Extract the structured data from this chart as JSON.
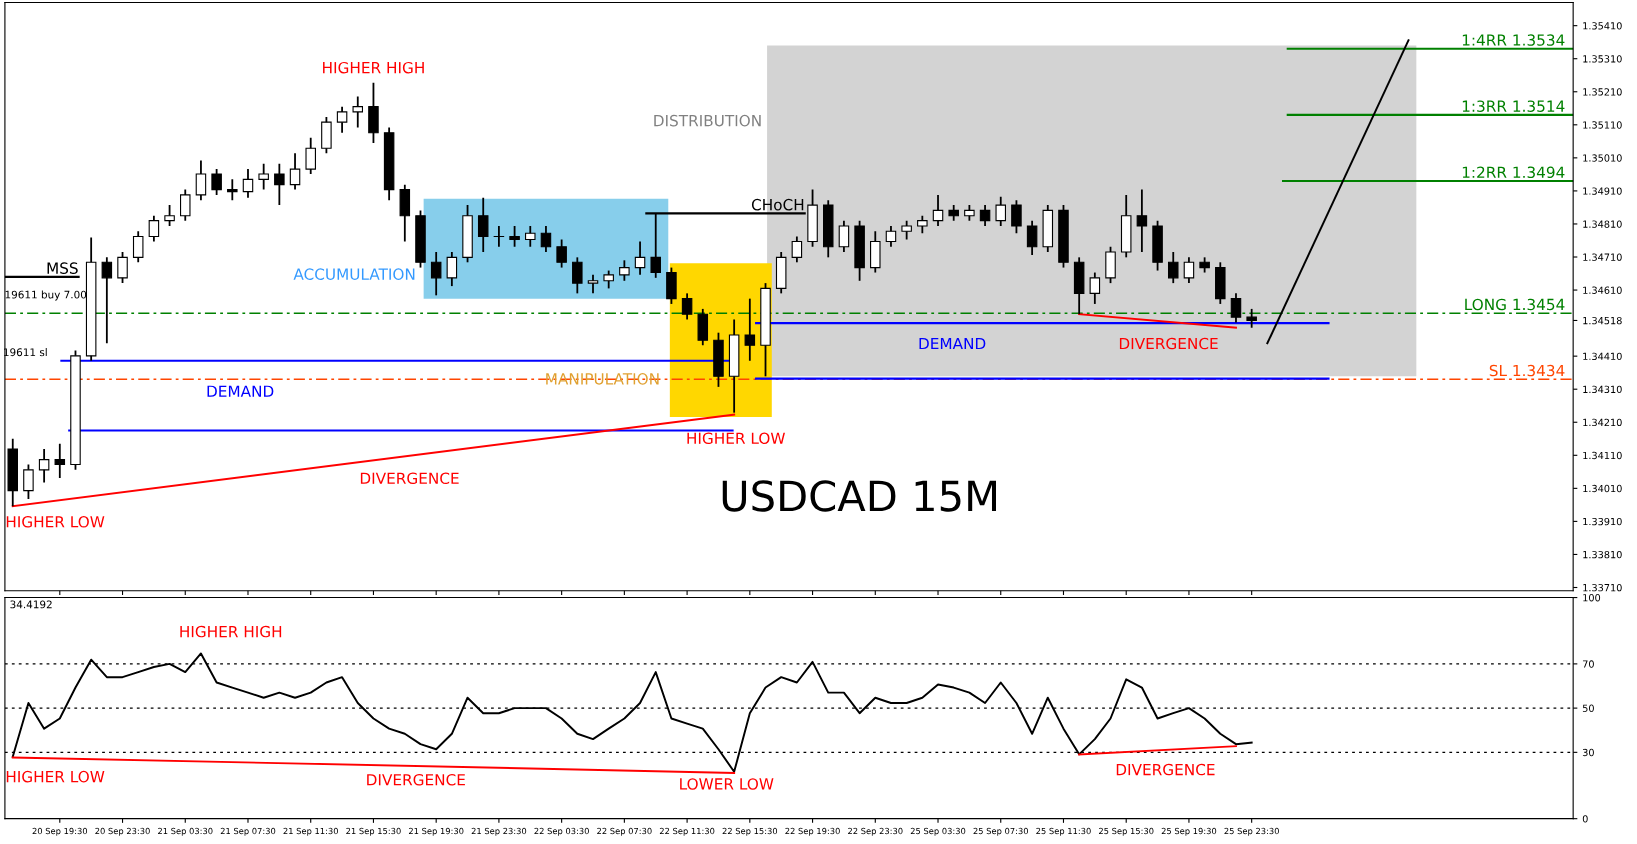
{
  "chart_data": [
    {
      "type": "candlestick",
      "title": "USDCAD 15M",
      "color": "#000000",
      "ohlc": [
        [
          1.34129,
          1.3416,
          1.33956,
          1.34003
        ],
        [
          1.34003,
          1.34082,
          1.33978,
          1.34066
        ],
        [
          1.34066,
          1.34129,
          1.34028,
          1.34097
        ],
        [
          1.34097,
          1.34145,
          1.34041,
          1.34082
        ],
        [
          1.34082,
          1.34427,
          1.34066,
          1.34411
        ],
        [
          1.34411,
          1.34769,
          1.34396,
          1.34694
        ],
        [
          1.34694,
          1.34709,
          1.34449,
          1.34647
        ],
        [
          1.34647,
          1.34725,
          1.34631,
          1.34709
        ],
        [
          1.34709,
          1.34788,
          1.34694,
          1.34772
        ],
        [
          1.34772,
          1.34835,
          1.34757,
          1.3482
        ],
        [
          1.3482,
          1.34867,
          1.34804,
          1.34835
        ],
        [
          1.34835,
          1.34914,
          1.3482,
          1.34898
        ],
        [
          1.34898,
          1.35002,
          1.34882,
          1.34961
        ],
        [
          1.34961,
          1.34976,
          1.34898,
          1.34914
        ],
        [
          1.34914,
          1.34945,
          1.34882,
          1.34908
        ],
        [
          1.34908,
          1.34976,
          1.34889,
          1.34945
        ],
        [
          1.34945,
          1.34992,
          1.34914,
          1.34961
        ],
        [
          1.34961,
          1.34992,
          1.34867,
          1.34929
        ],
        [
          1.34929,
          1.35024,
          1.34914,
          1.34976
        ],
        [
          1.34976,
          1.35071,
          1.34961,
          1.35039
        ],
        [
          1.35039,
          1.35134,
          1.35024,
          1.35118
        ],
        [
          1.35118,
          1.35165,
          1.35086,
          1.35149
        ],
        [
          1.35149,
          1.35196,
          1.35102,
          1.35165
        ],
        [
          1.35165,
          1.35237,
          1.35055,
          1.35086
        ],
        [
          1.35086,
          1.35102,
          1.34882,
          1.34914
        ],
        [
          1.34914,
          1.34929,
          1.34757,
          1.34835
        ],
        [
          1.34835,
          1.34851,
          1.34678,
          1.34694
        ],
        [
          1.34694,
          1.34725,
          1.34594,
          1.34647
        ],
        [
          1.34647,
          1.34725,
          1.34622,
          1.34709
        ],
        [
          1.34709,
          1.34867,
          1.34694,
          1.34835
        ],
        [
          1.34835,
          1.34889,
          1.34725,
          1.34772
        ],
        [
          1.34772,
          1.34804,
          1.34741,
          1.34772
        ],
        [
          1.34772,
          1.34804,
          1.34741,
          1.34763
        ],
        [
          1.34763,
          1.34804,
          1.34741,
          1.34782
        ],
        [
          1.34782,
          1.34804,
          1.34725,
          1.34741
        ],
        [
          1.34741,
          1.34763,
          1.34678,
          1.34694
        ],
        [
          1.34694,
          1.34709,
          1.346,
          1.34631
        ],
        [
          1.34631,
          1.34656,
          1.346,
          1.34638
        ],
        [
          1.34638,
          1.34669,
          1.34615,
          1.34656
        ],
        [
          1.34656,
          1.347,
          1.34638,
          1.34678
        ],
        [
          1.34678,
          1.34757,
          1.34656,
          1.34709
        ],
        [
          1.34709,
          1.34842,
          1.34647,
          1.34663
        ],
        [
          1.34663,
          1.34678,
          1.34568,
          1.34584
        ],
        [
          1.34584,
          1.346,
          1.34521,
          1.34537
        ],
        [
          1.34537,
          1.34553,
          1.34443,
          1.34458
        ],
        [
          1.34458,
          1.34481,
          1.34317,
          1.34349
        ],
        [
          1.34349,
          1.34521,
          1.34239,
          1.34474
        ],
        [
          1.34474,
          1.34584,
          1.34396,
          1.34443
        ],
        [
          1.34443,
          1.34631,
          1.34349,
          1.34615
        ],
        [
          1.34615,
          1.34725,
          1.346,
          1.34709
        ],
        [
          1.34709,
          1.34772,
          1.34694,
          1.34757
        ],
        [
          1.34757,
          1.34914,
          1.34741,
          1.34867
        ],
        [
          1.34867,
          1.34882,
          1.34709,
          1.34741
        ],
        [
          1.34741,
          1.3482,
          1.34725,
          1.34804
        ],
        [
          1.34804,
          1.3482,
          1.34638,
          1.34678
        ],
        [
          1.34678,
          1.34788,
          1.34663,
          1.34757
        ],
        [
          1.34757,
          1.34804,
          1.34741,
          1.34788
        ],
        [
          1.34788,
          1.3482,
          1.34763,
          1.34804
        ],
        [
          1.34804,
          1.34835,
          1.34782,
          1.3482
        ],
        [
          1.3482,
          1.34898,
          1.34804,
          1.34851
        ],
        [
          1.34851,
          1.34867,
          1.3482,
          1.34835
        ],
        [
          1.34835,
          1.34867,
          1.3482,
          1.34851
        ],
        [
          1.34851,
          1.34867,
          1.34804,
          1.3482
        ],
        [
          1.3482,
          1.34892,
          1.34804,
          1.34867
        ],
        [
          1.34867,
          1.34882,
          1.34782,
          1.34804
        ],
        [
          1.34804,
          1.3482,
          1.34716,
          1.34741
        ],
        [
          1.34741,
          1.34867,
          1.34725,
          1.34851
        ],
        [
          1.34851,
          1.34867,
          1.34678,
          1.34694
        ],
        [
          1.34694,
          1.34709,
          1.34537,
          1.346
        ],
        [
          1.346,
          1.34663,
          1.34568,
          1.34647
        ],
        [
          1.34647,
          1.34741,
          1.34631,
          1.34725
        ],
        [
          1.34725,
          1.34898,
          1.34709,
          1.34835
        ],
        [
          1.34835,
          1.34914,
          1.34725,
          1.34804
        ],
        [
          1.34804,
          1.3482,
          1.34669,
          1.34694
        ],
        [
          1.34694,
          1.34725,
          1.34631,
          1.34647
        ],
        [
          1.34647,
          1.34709,
          1.34631,
          1.34694
        ],
        [
          1.34694,
          1.34709,
          1.34663,
          1.34678
        ],
        [
          1.34678,
          1.34694,
          1.34568,
          1.34584
        ],
        [
          1.34584,
          1.346,
          1.34512,
          1.34528
        ],
        [
          1.34528,
          1.34553,
          1.34496,
          1.34518
        ],
        null,
        null,
        null,
        null,
        null,
        null,
        null,
        null,
        null,
        null,
        null,
        null,
        null,
        null,
        null,
        null,
        null,
        null,
        null,
        null
      ],
      "series": [
        {
          "type": "line",
          "color": "#ff0000",
          "values": [
            1.33956,
            null,
            null,
            null,
            null,
            null,
            null,
            null,
            null,
            null,
            null,
            null,
            null,
            null,
            null,
            null,
            null,
            null,
            null,
            null,
            null,
            null,
            null,
            null,
            null,
            null,
            null,
            null,
            null,
            null,
            null,
            null,
            null,
            null,
            null,
            null,
            null,
            null,
            null,
            null,
            null,
            null,
            null,
            null,
            null,
            null,
            1.34233,
            null,
            null,
            null,
            null,
            null,
            null,
            null,
            null,
            null,
            null,
            null,
            null,
            null,
            null,
            null,
            null,
            null,
            null,
            null,
            null,
            null,
            null,
            null,
            null,
            null,
            null,
            null,
            null,
            null,
            null,
            null,
            null,
            null,
            null,
            null,
            null,
            null,
            null,
            null,
            null,
            null,
            null,
            null,
            null,
            null,
            null,
            null,
            null,
            null,
            null,
            null,
            null,
            null
          ]
        },
        {
          "type": "line",
          "color": "#ff0000",
          "values": [
            null,
            null,
            null,
            null,
            null,
            null,
            null,
            null,
            null,
            null,
            null,
            null,
            null,
            null,
            null,
            null,
            null,
            null,
            null,
            null,
            null,
            null,
            null,
            null,
            null,
            null,
            null,
            null,
            null,
            null,
            null,
            null,
            null,
            null,
            null,
            null,
            null,
            null,
            null,
            null,
            null,
            null,
            null,
            null,
            null,
            null,
            null,
            null,
            null,
            null,
            null,
            null,
            null,
            null,
            null,
            null,
            null,
            null,
            null,
            null,
            null,
            null,
            null,
            null,
            null,
            null,
            null,
            null,
            1.34537,
            null,
            null,
            null,
            null,
            null,
            null,
            null,
            null,
            null,
            1.34496,
            null,
            null,
            null,
            null,
            null,
            null,
            null,
            null,
            null,
            null,
            null,
            null,
            null,
            null,
            null,
            null,
            null,
            null,
            null,
            null,
            null
          ]
        },
        {
          "type": "line",
          "color": "#000000",
          "values": [
            null,
            null,
            null,
            null,
            null,
            null,
            null,
            null,
            null,
            null,
            null,
            null,
            null,
            null,
            null,
            null,
            null,
            null,
            null,
            null,
            null,
            null,
            null,
            null,
            null,
            null,
            null,
            null,
            null,
            null,
            null,
            null,
            null,
            null,
            null,
            null,
            null,
            null,
            null,
            null,
            null,
            null,
            null,
            null,
            null,
            null,
            null,
            null,
            null,
            null,
            null,
            null,
            null,
            null,
            null,
            null,
            null,
            null,
            null,
            null,
            null,
            null,
            null,
            null,
            null,
            null,
            null,
            null,
            null,
            null,
            null,
            null,
            null,
            null,
            null,
            null,
            null,
            null,
            null,
            null,
            1.34449,
            null,
            null,
            null,
            null,
            null,
            null,
            null,
            null,
            1.35366,
            null,
            null,
            null,
            null,
            null,
            null,
            null,
            null,
            null,
            null
          ]
        }
      ],
      "bands": [
        {
          "axis": "y",
          "from": 1.34349,
          "to": 1.3535,
          "label": "DISTRIBUTION",
          "color": "#d3d3d3"
        },
        {
          "axis": "y",
          "from": 1.34584,
          "to": 1.34886,
          "label": "ACCUMULATION",
          "color": "#87ceeb"
        },
        {
          "axis": "y",
          "from": 1.34226,
          "to": 1.34691,
          "label": "MANIPULATION",
          "color": "#ffd700"
        }
      ],
      "ref_lines": [
        {
          "axis": "y",
          "value": 1.3454,
          "label": "LONG 1.3454",
          "color": "#008000",
          "line_style": "dashed"
        },
        {
          "axis": "y",
          "value": 1.3434,
          "label": "SL 1.3434",
          "color": "#ff4500",
          "line_style": "dashed"
        },
        {
          "axis": "y",
          "value": 1.3534,
          "label": "1:4RR 1.3534",
          "color": "#008000"
        },
        {
          "axis": "y",
          "value": 1.3514,
          "label": "1:3RR 1.3514",
          "color": "#008000"
        },
        {
          "axis": "y",
          "value": 1.3494,
          "label": "1:2RR 1.3494",
          "color": "#008000"
        },
        {
          "axis": "y",
          "value": 1.3465,
          "label": "MSS",
          "color": "#000000"
        },
        {
          "axis": "y",
          "value": 1.34842,
          "label": "CHoCH",
          "color": "#000000"
        },
        {
          "axis": "y",
          "value": 1.34396,
          "color": "#0000ff"
        },
        {
          "axis": "y",
          "value": 1.34185,
          "color": "#0000ff"
        },
        {
          "axis": "y",
          "value": 1.3451,
          "color": "#0000ff"
        },
        {
          "axis": "y",
          "value": 1.34342,
          "color": "#0000ff"
        }
      ],
      "annotations": [
        "HIGHER HIGH",
        "HIGHER LOW",
        "DIVERGENCE",
        "HIGHER LOW",
        "DEMAND",
        "DEMAND",
        "DIVERGENCE",
        "19611 buy 7.00",
        "19611 sl"
      ],
      "ylim": [
        1.337,
        1.3548
      ],
      "yticks": [
        {
          "value": 1.3371,
          "label": "1.33710"
        },
        {
          "value": 1.3381,
          "label": "1.33810"
        },
        {
          "value": 1.3391,
          "label": "1.33910"
        },
        {
          "value": 1.3401,
          "label": "1.34010"
        },
        {
          "value": 1.3411,
          "label": "1.34110"
        },
        {
          "value": 1.3421,
          "label": "1.34210"
        },
        {
          "value": 1.3431,
          "label": "1.34310"
        },
        {
          "value": 1.3441,
          "label": "1.34410"
        },
        {
          "value": 1.34518,
          "label": "1.34518"
        },
        {
          "value": 1.3461,
          "label": "1.34610"
        },
        {
          "value": 1.3471,
          "label": "1.34710"
        },
        {
          "value": 1.3481,
          "label": "1.34810"
        },
        {
          "value": 1.3491,
          "label": "1.34910"
        },
        {
          "value": 1.3501,
          "label": "1.35010"
        },
        {
          "value": 1.3511,
          "label": "1.35110"
        },
        {
          "value": 1.3521,
          "label": "1.35210"
        },
        {
          "value": 1.3531,
          "label": "1.35310"
        },
        {
          "value": 1.3541,
          "label": "1.35410"
        }
      ],
      "tick_labels": "y"
    },
    {
      "type": "line",
      "categories": [
        null,
        null,
        null,
        "20 Sep 19:30",
        null,
        null,
        null,
        "20 Sep 23:30",
        null,
        null,
        null,
        "21 Sep 03:30",
        null,
        null,
        null,
        "21 Sep 07:30",
        null,
        null,
        null,
        "21 Sep 11:30",
        null,
        null,
        null,
        "21 Sep 15:30",
        null,
        null,
        null,
        "21 Sep 19:30",
        null,
        null,
        null,
        "21 Sep 23:30",
        null,
        null,
        null,
        "22 Sep 03:30",
        null,
        null,
        null,
        "22 Sep 07:30",
        null,
        null,
        null,
        "22 Sep 11:30",
        null,
        null,
        null,
        "22 Sep 15:30",
        null,
        null,
        null,
        "22 Sep 19:30",
        null,
        null,
        null,
        "22 Sep 23:30",
        null,
        null,
        null,
        "25 Sep 03:30",
        null,
        null,
        null,
        "25 Sep 07:30",
        null,
        null,
        null,
        "25 Sep 11:30",
        null,
        null,
        null,
        "25 Sep 15:30",
        null,
        null,
        null,
        "25 Sep 19:30",
        null,
        null,
        null,
        "25 Sep 23:30",
        null,
        null,
        null,
        null,
        null,
        null,
        null,
        null,
        null,
        null,
        null,
        null,
        null,
        null,
        null,
        null,
        null,
        null,
        null,
        null
      ],
      "series": [
        {
          "color": "#000000",
          "values": [
            28,
            52.3,
            40.7,
            45.3,
            59.3,
            71.9,
            64,
            64,
            66.3,
            68.6,
            70,
            66.3,
            74.7,
            61.6,
            59.3,
            57,
            54.7,
            57,
            54.7,
            57,
            61.6,
            64,
            52.3,
            45.3,
            40.7,
            38.4,
            33.7,
            31.4,
            38.4,
            54.7,
            47.7,
            47.7,
            50,
            50,
            50,
            45.3,
            38.4,
            36,
            40.7,
            45.3,
            52.3,
            66.3,
            45.3,
            43,
            40.7,
            31.4,
            21.2,
            47.7,
            59.3,
            64,
            61.6,
            70.9,
            57,
            57,
            47.7,
            54.7,
            52.3,
            52.3,
            54.7,
            60.7,
            59.3,
            57,
            52.3,
            61.6,
            52.3,
            38.4,
            54.7,
            40.7,
            29.1,
            36,
            45.3,
            63,
            59.3,
            45.3,
            47.7,
            50,
            45.3,
            38.4,
            33.7,
            34.4,
            null,
            null,
            null,
            null,
            null,
            null,
            null,
            null,
            null,
            null,
            null,
            null,
            null,
            null,
            null,
            null,
            null,
            null,
            null,
            null
          ]
        },
        {
          "color": "#ff0000",
          "values": [
            27.7,
            null,
            null,
            null,
            null,
            null,
            null,
            null,
            null,
            null,
            null,
            null,
            null,
            null,
            null,
            null,
            null,
            null,
            null,
            null,
            null,
            null,
            null,
            null,
            null,
            null,
            null,
            null,
            null,
            null,
            null,
            null,
            null,
            null,
            null,
            null,
            null,
            null,
            null,
            null,
            null,
            null,
            null,
            null,
            null,
            null,
            20.7,
            null,
            null,
            null,
            null,
            null,
            null,
            null,
            null,
            null,
            null,
            null,
            null,
            null,
            null,
            null,
            null,
            null,
            null,
            null,
            null,
            null,
            null,
            null,
            null,
            null,
            null,
            null,
            null,
            null,
            null,
            null,
            null,
            null,
            null,
            null,
            null,
            null,
            null,
            null,
            null,
            null,
            null,
            null,
            null,
            null,
            null,
            null,
            null,
            null,
            null,
            null,
            null,
            null
          ]
        },
        {
          "color": "#ff0000",
          "values": [
            null,
            null,
            null,
            null,
            null,
            null,
            null,
            null,
            null,
            null,
            null,
            null,
            null,
            null,
            null,
            null,
            null,
            null,
            null,
            null,
            null,
            null,
            null,
            null,
            null,
            null,
            null,
            null,
            null,
            null,
            null,
            null,
            null,
            null,
            null,
            null,
            null,
            null,
            null,
            null,
            null,
            null,
            null,
            null,
            null,
            null,
            null,
            null,
            null,
            null,
            null,
            null,
            null,
            null,
            null,
            null,
            null,
            null,
            null,
            null,
            null,
            null,
            null,
            null,
            null,
            null,
            null,
            null,
            29,
            null,
            null,
            null,
            null,
            null,
            null,
            null,
            null,
            null,
            32.8,
            null,
            null,
            null,
            null,
            null,
            null,
            null,
            null,
            null,
            null,
            null,
            null,
            null,
            null,
            null,
            null,
            null,
            null,
            null,
            null,
            null
          ]
        }
      ],
      "ref_lines": [
        {
          "axis": "y",
          "value": 30,
          "color": "#000000",
          "line_style": "dotted"
        },
        {
          "axis": "y",
          "value": 50,
          "color": "#000000",
          "line_style": "dotted"
        },
        {
          "axis": "y",
          "value": 70,
          "color": "#000000",
          "line_style": "dotted"
        }
      ],
      "annotations": [
        "34.4192",
        "HIGHER HIGH",
        "HIGHER LOW",
        "DIVERGENCE",
        "LOWER LOW",
        "DIVERGENCE"
      ],
      "ylim": [
        0,
        100
      ],
      "yticks": [
        0,
        30,
        50,
        70,
        100
      ]
    }
  ]
}
